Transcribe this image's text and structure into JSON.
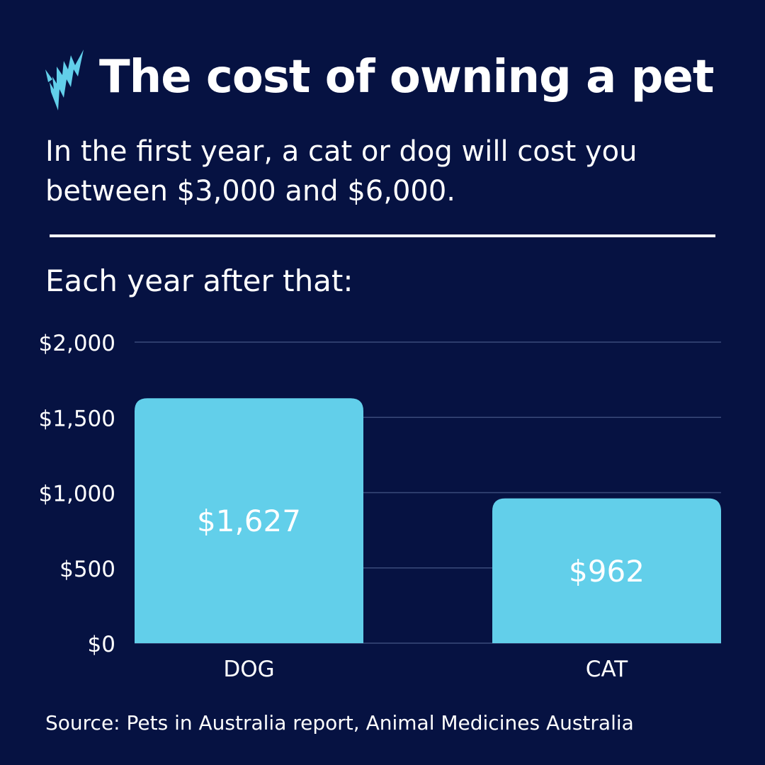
{
  "header": {
    "title": "The cost of owning a pet",
    "subtitle": "In the first year, a cat or dog will cost you between $3,000 and $6,000.",
    "lead": "Each year after that:"
  },
  "colors": {
    "background": "#061242",
    "bar": "#62cfea",
    "logo": "#62cfea"
  },
  "chart_data": {
    "type": "bar",
    "categories": [
      "DOG",
      "CAT"
    ],
    "values": [
      1627,
      962
    ],
    "data_labels": [
      "$1,627",
      "$962"
    ],
    "ylim": [
      0,
      2000
    ],
    "yticks": [
      0,
      500,
      1000,
      1500,
      2000
    ],
    "ytick_labels": [
      "$0",
      "$500",
      "$1,000",
      "$1,500",
      "$2,000"
    ],
    "grid": true,
    "xlabel": "",
    "ylabel": ""
  },
  "footer": {
    "source": "Source: Pets in Australia report, Animal Medicines Australia"
  }
}
